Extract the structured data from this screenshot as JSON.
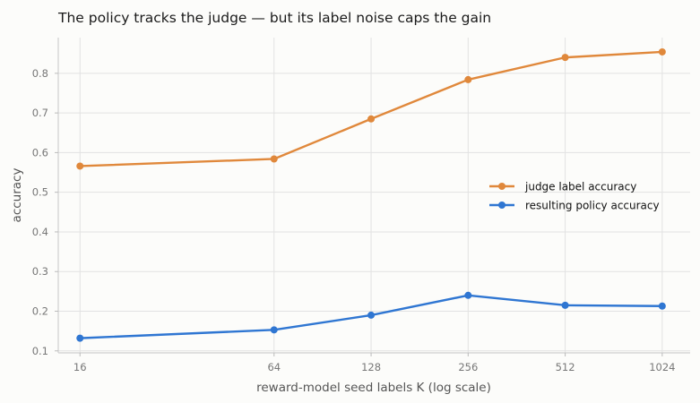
{
  "chart_data": {
    "type": "line",
    "title": "The policy tracks the judge — but its label noise caps the gain",
    "xlabel": "reward-model seed labels K (log scale)",
    "ylabel": "accuracy",
    "x_scale": "log2",
    "x": [
      16,
      64,
      128,
      256,
      512,
      1024
    ],
    "x_tick_labels": [
      "16",
      "64",
      "128",
      "256",
      "512",
      "1024"
    ],
    "y_ticks": [
      0.1,
      0.2,
      0.3,
      0.4,
      0.5,
      0.6,
      0.7,
      0.8
    ],
    "y_tick_labels": [
      "0.1",
      "0.2",
      "0.3",
      "0.4",
      "0.5",
      "0.6",
      "0.7",
      "0.8"
    ],
    "ylim": [
      0.095,
      0.89
    ],
    "xlim": [
      13.7,
      1250
    ],
    "grid": true,
    "legend_position": "center-right",
    "series": [
      {
        "name": "judge label accuracy",
        "color": "#e0883b",
        "values": [
          0.566,
          0.584,
          0.685,
          0.784,
          0.84,
          0.854
        ]
      },
      {
        "name": "resulting policy accuracy",
        "color": "#2f76d2",
        "values": [
          0.132,
          0.153,
          0.19,
          0.24,
          0.215,
          0.213
        ]
      }
    ]
  }
}
